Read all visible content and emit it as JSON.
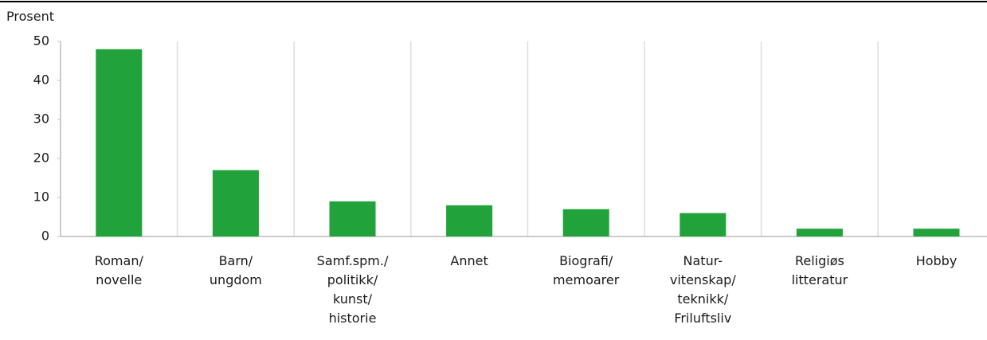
{
  "chart_data": {
    "type": "bar",
    "y_label": "Prosent",
    "categories": [
      "Roman/\nnovelle",
      "Barn/\nungdom",
      "Samf.spm./\npolitikk/\nkunst/\nhistorie",
      "Annet",
      "Biografi/\nmemoarer",
      "Natur-\nvitenskap/\nteknikk/\nFriluftsliv",
      "Religiøs\nlitteratur",
      "Hobby"
    ],
    "values": [
      48,
      17,
      9,
      8,
      7,
      6,
      2,
      2
    ],
    "color": "#22a23a",
    "ylim": [
      0,
      50
    ],
    "yticks": [
      0,
      10,
      20,
      30,
      40,
      50
    ]
  }
}
